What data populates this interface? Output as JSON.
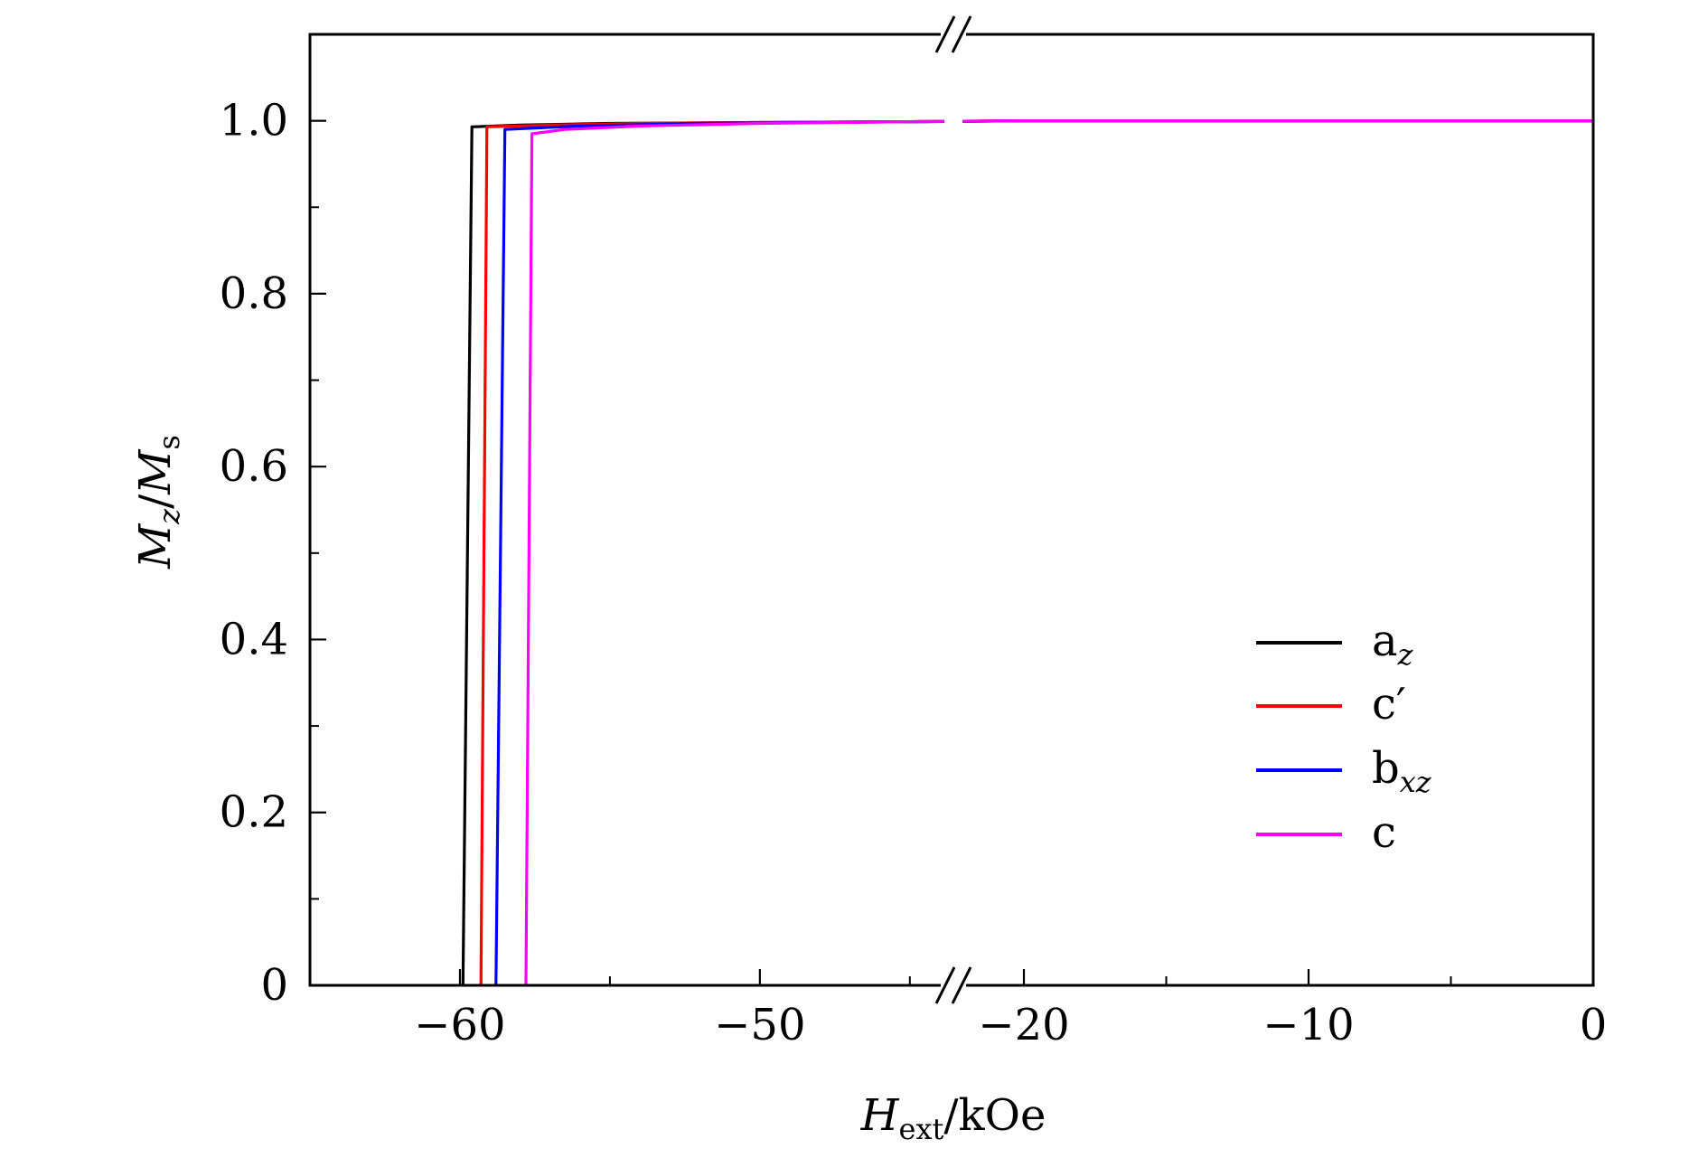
{
  "chart_data": {
    "type": "line",
    "axis_break": {
      "left_segment": [
        -65,
        -44
      ],
      "right_segment": [
        -22,
        0
      ]
    },
    "xlim": [
      -65,
      0
    ],
    "ylim": [
      0,
      1.1
    ],
    "xticks": [
      {
        "value": -60,
        "label": "−60"
      },
      {
        "value": -50,
        "label": "−50"
      },
      {
        "value": -20,
        "label": "−20"
      },
      {
        "value": -10,
        "label": "−10"
      },
      {
        "value": 0,
        "label": "0"
      }
    ],
    "yticks": [
      {
        "value": 0,
        "label": "0"
      },
      {
        "value": 0.2,
        "label": "0.2"
      },
      {
        "value": 0.4,
        "label": "0.4"
      },
      {
        "value": 0.6,
        "label": "0.6"
      },
      {
        "value": 0.8,
        "label": "0.8"
      },
      {
        "value": 1.0,
        "label": "1.0"
      }
    ],
    "xlabel": {
      "main": "H",
      "sub": "ext",
      "suffix": "/kOe"
    },
    "ylabel": {
      "m1": "M",
      "s1": "z",
      "slash": "/",
      "m2": "M",
      "s2": "s"
    },
    "legend_placement": "lower-right",
    "grid": false,
    "series": [
      {
        "name": "a",
        "name_sub": "z",
        "color": "#000000",
        "points": [
          [
            -59.9,
            0.0
          ],
          [
            -59.6,
            0.993
          ],
          [
            -58.0,
            0.995
          ],
          [
            -55.0,
            0.997
          ],
          [
            -50.0,
            0.998
          ],
          [
            -45.0,
            0.999
          ],
          [
            -20.0,
            1.0
          ],
          [
            0.0,
            1.0
          ]
        ]
      },
      {
        "name": "c′",
        "name_sub": "",
        "color": "#ff0000",
        "points": [
          [
            -59.3,
            0.0
          ],
          [
            -59.1,
            0.993
          ],
          [
            -57.0,
            0.995
          ],
          [
            -54.0,
            0.997
          ],
          [
            -50.0,
            0.998
          ],
          [
            -45.0,
            0.999
          ],
          [
            -20.0,
            1.0
          ],
          [
            0.0,
            1.0
          ]
        ]
      },
      {
        "name": "b",
        "name_sub": "xz",
        "color": "#0000ff",
        "points": [
          [
            -58.8,
            0.0
          ],
          [
            -58.5,
            0.99
          ],
          [
            -56.0,
            0.994
          ],
          [
            -52.0,
            0.997
          ],
          [
            -48.0,
            0.998
          ],
          [
            -44.5,
            0.999
          ],
          [
            -20.0,
            1.0
          ],
          [
            0.0,
            1.0
          ]
        ]
      },
      {
        "name": "c",
        "name_sub": "",
        "color": "#ff00ff",
        "points": [
          [
            -57.8,
            0.0
          ],
          [
            -57.6,
            0.985
          ],
          [
            -56.5,
            0.99
          ],
          [
            -54.0,
            0.994
          ],
          [
            -50.0,
            0.997
          ],
          [
            -45.0,
            0.999
          ],
          [
            -20.0,
            1.0
          ],
          [
            0.0,
            1.0
          ]
        ]
      }
    ]
  }
}
